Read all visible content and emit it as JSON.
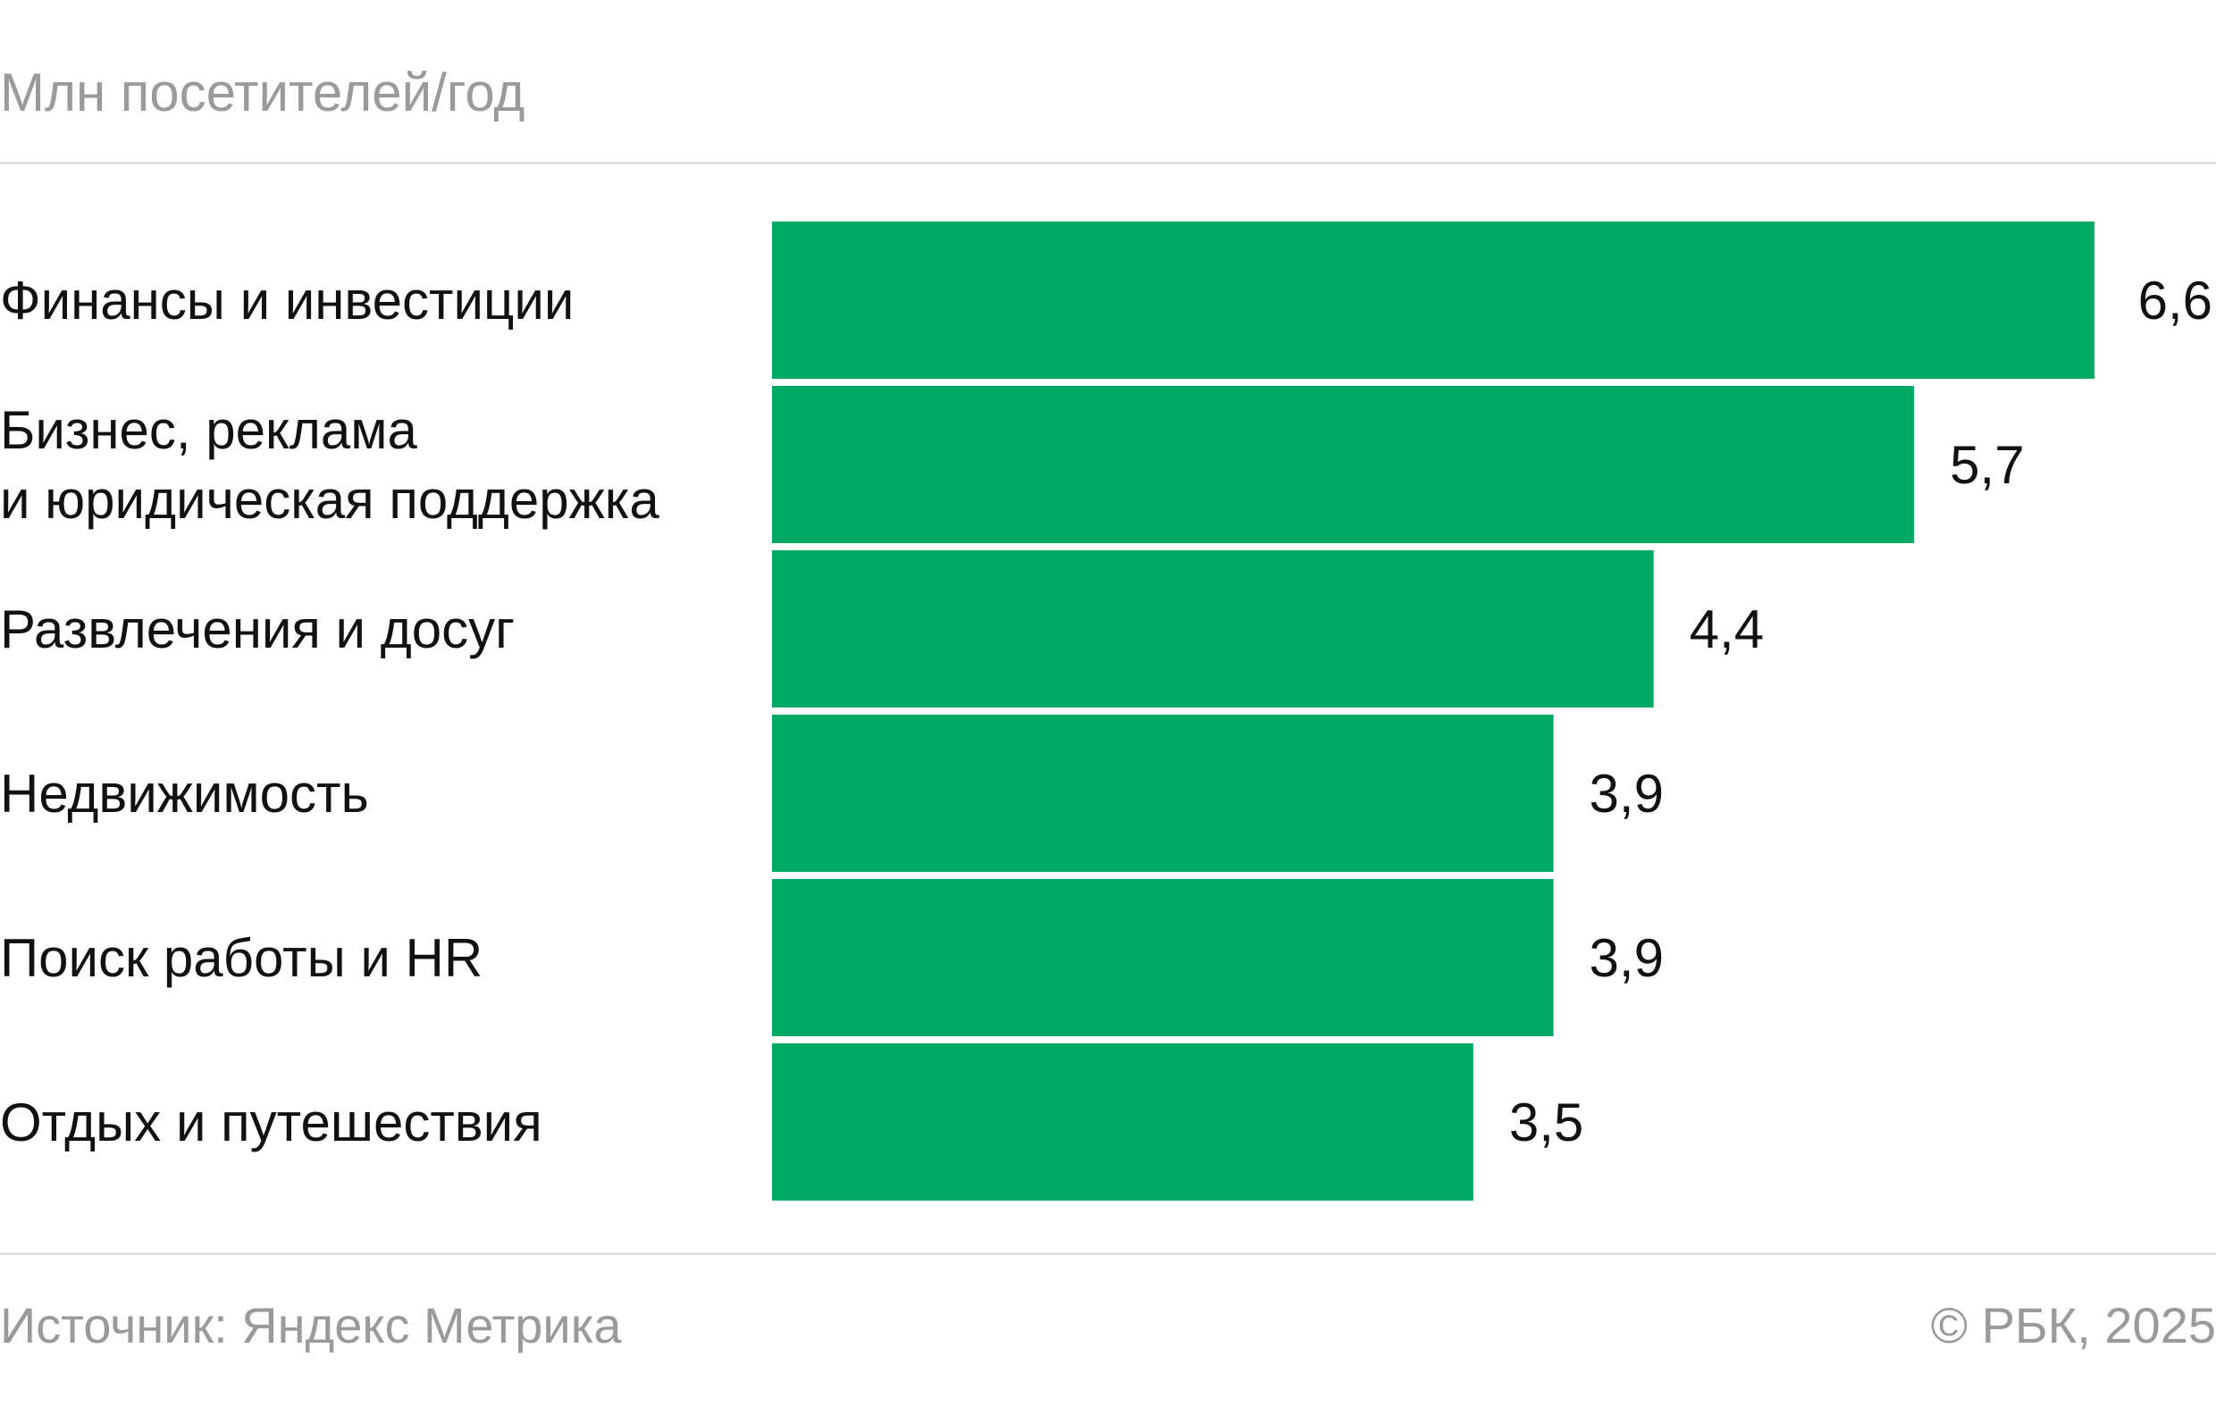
{
  "chart_data": {
    "type": "bar",
    "orientation": "horizontal",
    "units_label": "Млн посетителей/год",
    "categories": [
      "Финансы и инвестиции",
      "Бизнес, реклама\nи юридическая поддержка",
      "Развлечения и досуг",
      "Недвижимость",
      "Поиск работы и HR",
      "Отдых и путешествия"
    ],
    "values": [
      6.6,
      5.7,
      4.4,
      3.9,
      3.9,
      3.5
    ],
    "value_labels": [
      "6,6",
      "5,7",
      "4,4",
      "3,9",
      "3,9",
      "3,5"
    ],
    "xlim": [
      0,
      6.6
    ],
    "grid": false,
    "bar_color": "#00a866"
  },
  "footer": {
    "source": "Источник: Яндекс Метрика",
    "copyright": "© РБК, 2025"
  },
  "colors": {
    "bar": "#00a866",
    "muted_text": "#9a9a9a",
    "text": "#111111",
    "rule": "#e0e0e0"
  }
}
